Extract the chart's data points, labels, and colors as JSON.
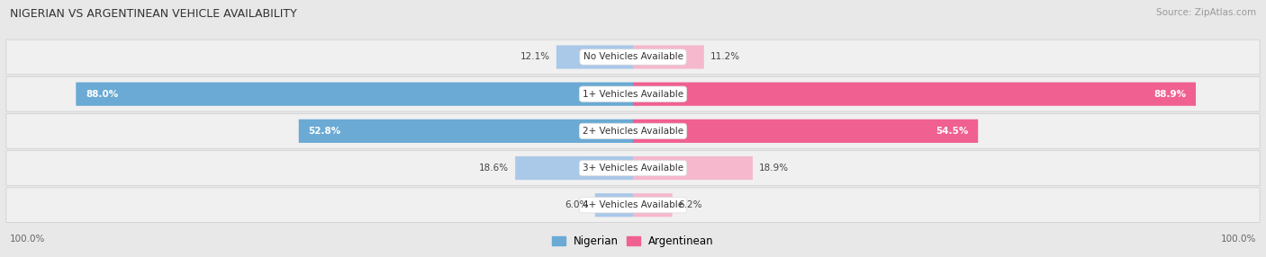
{
  "title": "NIGERIAN VS ARGENTINEAN VEHICLE AVAILABILITY",
  "source": "Source: ZipAtlas.com",
  "categories": [
    "No Vehicles Available",
    "1+ Vehicles Available",
    "2+ Vehicles Available",
    "3+ Vehicles Available",
    "4+ Vehicles Available"
  ],
  "nigerian": [
    12.1,
    88.0,
    52.8,
    18.6,
    6.0
  ],
  "argentinean": [
    11.2,
    88.9,
    54.5,
    18.9,
    6.2
  ],
  "nigerian_color_light": "#aac8e8",
  "nigerian_color_dark": "#6aaad4",
  "argentinean_color_light": "#f5b8cc",
  "argentinean_color_dark": "#f06090",
  "background_color": "#e8e8e8",
  "row_bg_color": "#f5f5f5",
  "max_value": 100.0,
  "legend_nigerian": "Nigerian",
  "legend_argentinean": "Argentinean",
  "label_threshold": 20
}
